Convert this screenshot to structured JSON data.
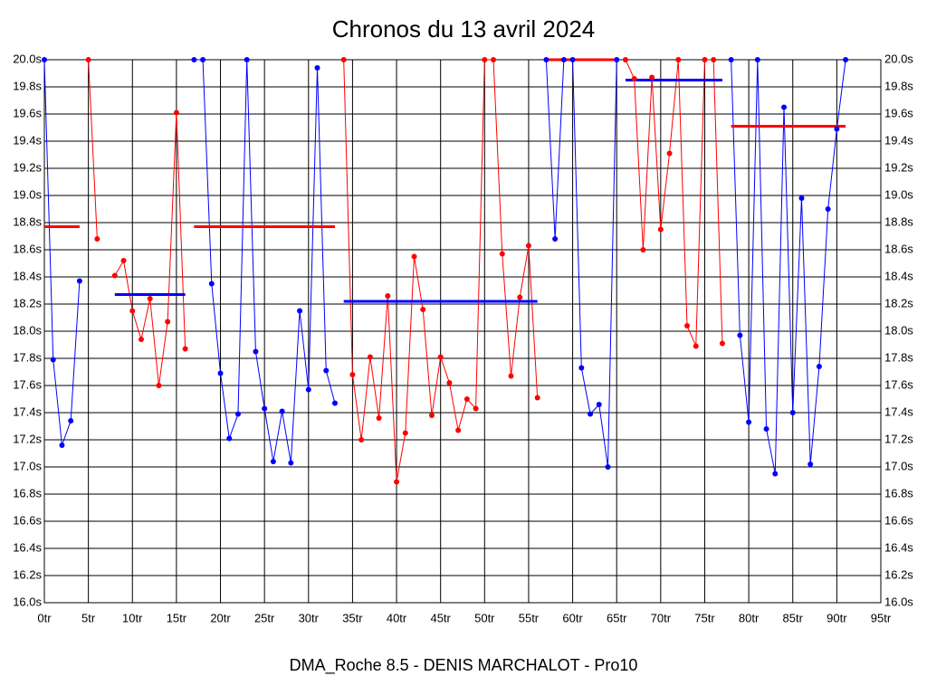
{
  "chart_data": {
    "type": "line",
    "title": "Chronos du 13 avril 2024",
    "subtitle": "DMA_Roche 8.5 - DENIS MARCHALOT - Pro10",
    "xlim": [
      0,
      95
    ],
    "ylim": [
      16.0,
      20.0
    ],
    "grid": true,
    "xticks": [
      {
        "value": 0,
        "label": "0tr"
      },
      {
        "value": 5,
        "label": "5tr"
      },
      {
        "value": 10,
        "label": "10tr"
      },
      {
        "value": 15,
        "label": "15tr"
      },
      {
        "value": 20,
        "label": "20tr"
      },
      {
        "value": 25,
        "label": "25tr"
      },
      {
        "value": 30,
        "label": "30tr"
      },
      {
        "value": 35,
        "label": "35tr"
      },
      {
        "value": 40,
        "label": "40tr"
      },
      {
        "value": 45,
        "label": "45tr"
      },
      {
        "value": 50,
        "label": "50tr"
      },
      {
        "value": 55,
        "label": "55tr"
      },
      {
        "value": 60,
        "label": "60tr"
      },
      {
        "value": 65,
        "label": "65tr"
      },
      {
        "value": 70,
        "label": "70tr"
      },
      {
        "value": 75,
        "label": "75tr"
      },
      {
        "value": 80,
        "label": "80tr"
      },
      {
        "value": 85,
        "label": "85tr"
      },
      {
        "value": 90,
        "label": "90tr"
      },
      {
        "value": 95,
        "label": "95tr"
      }
    ],
    "yticks": [
      {
        "value": 16.0,
        "label": "16.0s"
      },
      {
        "value": 16.2,
        "label": "16.2s"
      },
      {
        "value": 16.4,
        "label": "16.4s"
      },
      {
        "value": 16.6,
        "label": "16.6s"
      },
      {
        "value": 16.8,
        "label": "16.8s"
      },
      {
        "value": 17.0,
        "label": "17.0s"
      },
      {
        "value": 17.2,
        "label": "17.2s"
      },
      {
        "value": 17.4,
        "label": "17.4s"
      },
      {
        "value": 17.6,
        "label": "17.6s"
      },
      {
        "value": 17.8,
        "label": "17.8s"
      },
      {
        "value": 18.0,
        "label": "18.0s"
      },
      {
        "value": 18.2,
        "label": "18.2s"
      },
      {
        "value": 18.4,
        "label": "18.4s"
      },
      {
        "value": 18.6,
        "label": "18.6s"
      },
      {
        "value": 18.8,
        "label": "18.8s"
      },
      {
        "value": 19.0,
        "label": "19.0s"
      },
      {
        "value": 19.2,
        "label": "19.2s"
      },
      {
        "value": 19.4,
        "label": "19.4s"
      },
      {
        "value": 19.6,
        "label": "19.6s"
      },
      {
        "value": 19.8,
        "label": "19.8s"
      },
      {
        "value": 20.0,
        "label": "20.0s"
      }
    ],
    "series": [
      {
        "color": "#0000ff",
        "x": [
          0,
          1,
          2,
          3,
          4
        ],
        "values": [
          20.0,
          17.79,
          17.16,
          17.34,
          18.37
        ],
        "mean": {
          "value": 18.77,
          "x": [
            0,
            4
          ],
          "color": "#ff0000"
        }
      },
      {
        "color": "#ff0000",
        "x": [
          5,
          6,
          7,
          8,
          9,
          10,
          11,
          12,
          13,
          14,
          15,
          16
        ],
        "values": [
          20.0,
          18.68,
          null,
          18.41,
          18.52,
          18.15,
          17.94,
          18.24,
          17.6,
          18.07,
          19.61,
          17.87
        ],
        "mean": {
          "value": 18.27,
          "x": [
            8,
            16
          ],
          "color": "#0000ff"
        }
      },
      {
        "color": "#0000ff",
        "x": [
          17,
          18,
          19,
          20,
          21,
          22,
          23,
          24,
          25,
          26,
          27,
          28,
          29,
          30,
          31,
          32,
          33
        ],
        "values": [
          20.0,
          20.0,
          18.35,
          17.69,
          17.21,
          17.39,
          20.0,
          17.85,
          17.43,
          17.04,
          17.41,
          17.03,
          18.15,
          17.57,
          19.94,
          17.71,
          17.47
        ],
        "mean": {
          "value": 18.77,
          "x": [
            17,
            33
          ],
          "color": "#ff0000"
        }
      },
      {
        "color": "#ff0000",
        "x": [
          34,
          35,
          36,
          37,
          38,
          39,
          40,
          41,
          42,
          43,
          44,
          45,
          46,
          47,
          48,
          49,
          50,
          51,
          52,
          53,
          54,
          55,
          56
        ],
        "values": [
          20.0,
          17.68,
          17.2,
          17.81,
          17.36,
          18.26,
          16.89,
          17.25,
          18.55,
          18.16,
          17.38,
          17.81,
          17.62,
          17.27,
          17.5,
          17.43,
          20.0,
          20.0,
          18.57,
          17.67,
          18.25,
          18.63,
          17.51
        ],
        "mean": {
          "value": 18.22,
          "x": [
            34,
            56
          ],
          "color": "#0000ff"
        }
      },
      {
        "color": "#0000ff",
        "x": [
          57,
          58,
          59,
          60,
          61,
          62,
          63,
          64,
          65
        ],
        "values": [
          20.0,
          18.68,
          20.0,
          20.0,
          17.73,
          17.39,
          17.46,
          17.0,
          20.0
        ],
        "mean": {
          "value": 20.0,
          "x": [
            57,
            65
          ],
          "color": "#ff0000"
        }
      },
      {
        "color": "#ff0000",
        "x": [
          66,
          67,
          68,
          69,
          70,
          71,
          72,
          73,
          74,
          75,
          76,
          77
        ],
        "values": [
          20.0,
          19.86,
          18.6,
          19.87,
          18.75,
          19.31,
          20.0,
          18.04,
          17.89,
          20.0,
          20.0,
          17.91
        ],
        "mean": {
          "value": 19.85,
          "x": [
            66,
            77
          ],
          "color": "#0000ff"
        }
      },
      {
        "color": "#0000ff",
        "x": [
          78,
          79,
          80,
          81,
          82,
          83,
          84,
          85,
          86,
          87,
          88,
          89,
          90,
          91
        ],
        "values": [
          20.0,
          17.97,
          17.33,
          20.0,
          17.28,
          16.95,
          19.65,
          17.4,
          18.98,
          17.02,
          17.74,
          18.9,
          19.49,
          20.0
        ],
        "mean": {
          "value": 19.51,
          "x": [
            78,
            91
          ],
          "color": "#ff0000"
        }
      }
    ]
  }
}
